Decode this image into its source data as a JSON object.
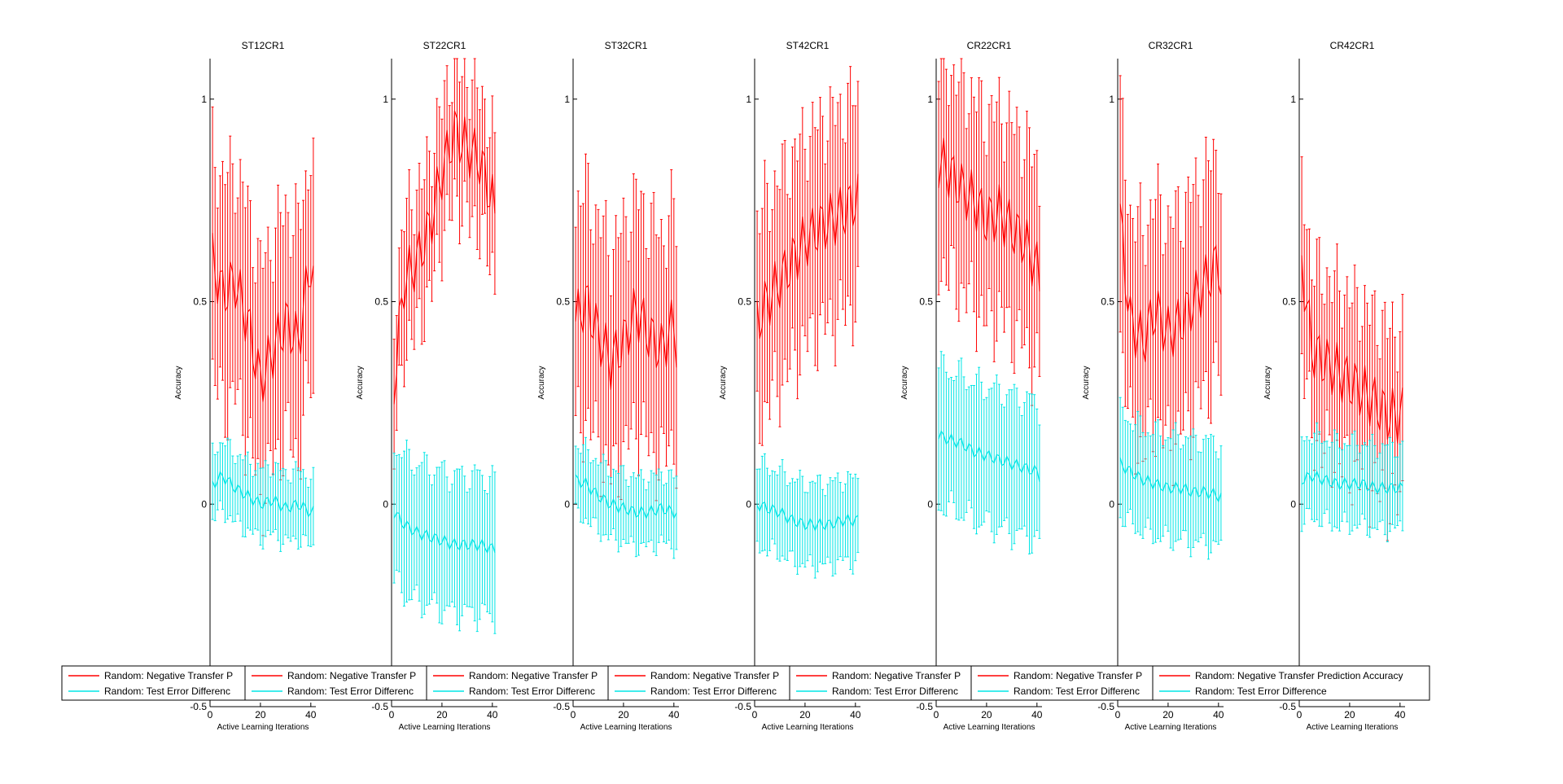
{
  "chart_data": [
    {
      "type": "line",
      "title": "ST12CR1",
      "ylabel": "Accuracy",
      "xlabel": "Active Learning Iterations",
      "xlim": [
        0,
        42
      ],
      "ylim": [
        -0.5,
        1.1
      ],
      "xticks": [
        0,
        20,
        40
      ],
      "yticks": [
        -0.5,
        0,
        0.5,
        1
      ],
      "legend": [
        "Random: Negative Transfer P",
        "Random: Test Error Differenc"
      ],
      "series": [
        {
          "color": "#ff0000",
          "mean": [
            [
              1,
              0.6
            ],
            [
              5,
              0.52
            ],
            [
              10,
              0.55
            ],
            [
              15,
              0.45
            ],
            [
              20,
              0.3
            ],
            [
              25,
              0.38
            ],
            [
              30,
              0.45
            ],
            [
              35,
              0.4
            ],
            [
              40,
              0.6
            ],
            [
              41,
              0.55
            ]
          ],
          "err": 0.33
        },
        {
          "color": "#00e5e5",
          "mean": [
            [
              1,
              0.05
            ],
            [
              5,
              0.07
            ],
            [
              10,
              0.04
            ],
            [
              15,
              0.02
            ],
            [
              20,
              0.0
            ],
            [
              25,
              0.01
            ],
            [
              30,
              -0.01
            ],
            [
              35,
              0.0
            ],
            [
              40,
              -0.02
            ],
            [
              41,
              -0.02
            ]
          ],
          "err": 0.1
        }
      ]
    },
    {
      "type": "line",
      "title": "ST22CR1",
      "ylabel": "Accuracy",
      "xlabel": "Active Learning Iterations",
      "xlim": [
        0,
        42
      ],
      "ylim": [
        -0.5,
        1.1
      ],
      "xticks": [
        0,
        20,
        40
      ],
      "yticks": [
        -0.5,
        0,
        0.5,
        1
      ],
      "legend": [
        "Random: Negative Transfer P",
        "Random: Test Error Differenc"
      ],
      "series": [
        {
          "color": "#ff0000",
          "mean": [
            [
              1,
              0.3
            ],
            [
              5,
              0.55
            ],
            [
              10,
              0.6
            ],
            [
              15,
              0.68
            ],
            [
              20,
              0.82
            ],
            [
              25,
              0.92
            ],
            [
              30,
              0.88
            ],
            [
              35,
              0.85
            ],
            [
              40,
              0.75
            ],
            [
              41,
              0.7
            ]
          ],
          "err": 0.2
        },
        {
          "color": "#00e5e5",
          "mean": [
            [
              1,
              -0.02
            ],
            [
              5,
              -0.05
            ],
            [
              10,
              -0.07
            ],
            [
              15,
              -0.08
            ],
            [
              20,
              -0.09
            ],
            [
              25,
              -0.1
            ],
            [
              30,
              -0.1
            ],
            [
              35,
              -0.1
            ],
            [
              40,
              -0.11
            ],
            [
              41,
              -0.11
            ]
          ],
          "err": 0.2
        }
      ]
    },
    {
      "type": "line",
      "title": "ST32CR1",
      "ylabel": "Accuracy",
      "xlabel": "Active Learning Iterations",
      "xlim": [
        0,
        42
      ],
      "ylim": [
        -0.5,
        1.1
      ],
      "xticks": [
        0,
        20,
        40
      ],
      "yticks": [
        -0.5,
        0,
        0.5,
        1
      ],
      "legend": [
        "Random: Negative Transfer P",
        "Random: Test Error Differenc"
      ],
      "series": [
        {
          "color": "#ff0000",
          "mean": [
            [
              1,
              0.45
            ],
            [
              5,
              0.5
            ],
            [
              10,
              0.42
            ],
            [
              15,
              0.35
            ],
            [
              20,
              0.4
            ],
            [
              25,
              0.48
            ],
            [
              30,
              0.42
            ],
            [
              35,
              0.38
            ],
            [
              40,
              0.45
            ],
            [
              41,
              0.4
            ]
          ],
          "err": 0.33
        },
        {
          "color": "#00e5e5",
          "mean": [
            [
              1,
              0.06
            ],
            [
              5,
              0.05
            ],
            [
              10,
              0.02
            ],
            [
              15,
              0.0
            ],
            [
              20,
              -0.01
            ],
            [
              25,
              -0.02
            ],
            [
              30,
              -0.02
            ],
            [
              35,
              -0.01
            ],
            [
              40,
              -0.02
            ],
            [
              41,
              -0.02
            ]
          ],
          "err": 0.1
        }
      ]
    },
    {
      "type": "line",
      "title": "ST42CR1",
      "ylabel": "Accuracy",
      "xlabel": "Active Learning Iterations",
      "xlim": [
        0,
        42
      ],
      "ylim": [
        -0.5,
        1.1
      ],
      "xticks": [
        0,
        20,
        40
      ],
      "yticks": [
        -0.5,
        0,
        0.5,
        1
      ],
      "legend": [
        "Random: Negative Transfer P",
        "Random: Test Error Differenc"
      ],
      "series": [
        {
          "color": "#ff0000",
          "mean": [
            [
              1,
              0.45
            ],
            [
              5,
              0.5
            ],
            [
              10,
              0.55
            ],
            [
              15,
              0.6
            ],
            [
              20,
              0.65
            ],
            [
              25,
              0.68
            ],
            [
              30,
              0.7
            ],
            [
              35,
              0.72
            ],
            [
              40,
              0.75
            ],
            [
              41,
              0.75
            ]
          ],
          "err": 0.3
        },
        {
          "color": "#00e5e5",
          "mean": [
            [
              1,
              0.0
            ],
            [
              5,
              -0.01
            ],
            [
              10,
              -0.02
            ],
            [
              15,
              -0.04
            ],
            [
              20,
              -0.05
            ],
            [
              25,
              -0.05
            ],
            [
              30,
              -0.05
            ],
            [
              35,
              -0.04
            ],
            [
              40,
              -0.04
            ],
            [
              41,
              -0.04
            ]
          ],
          "err": 0.12
        }
      ]
    },
    {
      "type": "line",
      "title": "CR22CR1",
      "ylabel": "Accuracy",
      "xlabel": "Active Learning Iterations",
      "xlim": [
        0,
        42
      ],
      "ylim": [
        -0.5,
        1.1
      ],
      "xticks": [
        0,
        20,
        40
      ],
      "yticks": [
        -0.5,
        0,
        0.5,
        1
      ],
      "legend": [
        "Random: Negative Transfer P",
        "Random: Test Error Differenc"
      ],
      "series": [
        {
          "color": "#ff0000",
          "mean": [
            [
              1,
              0.85
            ],
            [
              5,
              0.82
            ],
            [
              10,
              0.78
            ],
            [
              15,
              0.75
            ],
            [
              20,
              0.7
            ],
            [
              25,
              0.72
            ],
            [
              30,
              0.68
            ],
            [
              35,
              0.65
            ],
            [
              40,
              0.58
            ],
            [
              41,
              0.55
            ]
          ],
          "err": 0.3
        },
        {
          "color": "#00e5e5",
          "mean": [
            [
              1,
              0.17
            ],
            [
              5,
              0.16
            ],
            [
              10,
              0.15
            ],
            [
              15,
              0.13
            ],
            [
              20,
              0.12
            ],
            [
              25,
              0.11
            ],
            [
              30,
              0.1
            ],
            [
              35,
              0.09
            ],
            [
              40,
              0.08
            ],
            [
              41,
              0.07
            ]
          ],
          "err": 0.2
        }
      ]
    },
    {
      "type": "line",
      "title": "CR32CR1",
      "ylabel": "Accuracy",
      "xlabel": "Active Learning Iterations",
      "xlim": [
        0,
        42
      ],
      "ylim": [
        -0.5,
        1.1
      ],
      "xticks": [
        0,
        20,
        40
      ],
      "yticks": [
        -0.5,
        0,
        0.5,
        1
      ],
      "legend": [
        "Random: Negative Transfer P",
        "Random: Test Error Differenc"
      ],
      "series": [
        {
          "color": "#ff0000",
          "mean": [
            [
              1,
              0.7
            ],
            [
              5,
              0.45
            ],
            [
              10,
              0.4
            ],
            [
              15,
              0.48
            ],
            [
              20,
              0.42
            ],
            [
              25,
              0.45
            ],
            [
              30,
              0.5
            ],
            [
              35,
              0.55
            ],
            [
              40,
              0.6
            ],
            [
              41,
              0.55
            ]
          ],
          "err": 0.32
        },
        {
          "color": "#00e5e5",
          "mean": [
            [
              1,
              0.1
            ],
            [
              5,
              0.08
            ],
            [
              10,
              0.06
            ],
            [
              15,
              0.05
            ],
            [
              20,
              0.04
            ],
            [
              25,
              0.04
            ],
            [
              30,
              0.03
            ],
            [
              35,
              0.03
            ],
            [
              40,
              0.02
            ],
            [
              41,
              0.02
            ]
          ],
          "err": 0.15
        }
      ]
    },
    {
      "type": "line",
      "title": "CR42CR1",
      "ylabel": "Accuracy",
      "xlabel": "Active Learning Iterations",
      "xlim": [
        0,
        42
      ],
      "ylim": [
        -0.5,
        1.1
      ],
      "xticks": [
        0,
        20,
        40
      ],
      "yticks": [
        -0.5,
        0,
        0.5,
        1
      ],
      "legend": [
        "Random: Negative Transfer Prediction Accuracy",
        "Random: Test Error Difference"
      ],
      "series": [
        {
          "color": "#ff0000",
          "mean": [
            [
              1,
              0.6
            ],
            [
              5,
              0.38
            ],
            [
              10,
              0.35
            ],
            [
              15,
              0.33
            ],
            [
              20,
              0.3
            ],
            [
              25,
              0.28
            ],
            [
              30,
              0.25
            ],
            [
              35,
              0.22
            ],
            [
              40,
              0.22
            ],
            [
              41,
              0.22
            ]
          ],
          "err": 0.25
        },
        {
          "color": "#00e5e5",
          "mean": [
            [
              1,
              0.06
            ],
            [
              5,
              0.07
            ],
            [
              10,
              0.06
            ],
            [
              15,
              0.05
            ],
            [
              20,
              0.05
            ],
            [
              25,
              0.05
            ],
            [
              30,
              0.04
            ],
            [
              35,
              0.04
            ],
            [
              40,
              0.04
            ],
            [
              41,
              0.04
            ]
          ],
          "err": 0.12
        }
      ]
    }
  ]
}
